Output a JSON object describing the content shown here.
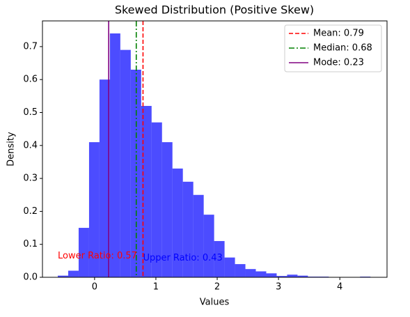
{
  "chart_data": {
    "type": "histogram",
    "title": "Skewed Distribution (Positive Skew)",
    "xlabel": "Values",
    "ylabel": "Density",
    "bins": [
      -0.6,
      -0.43,
      -0.26,
      -0.09,
      0.08,
      0.25,
      0.42,
      0.59,
      0.76,
      0.93,
      1.1,
      1.27,
      1.44,
      1.61,
      1.78,
      1.95,
      2.12,
      2.29,
      2.46,
      2.63,
      2.8,
      2.97,
      3.14,
      3.31,
      3.48,
      3.65,
      3.82,
      3.99,
      4.16,
      4.33,
      4.5
    ],
    "values": [
      0.005,
      0.02,
      0.15,
      0.41,
      0.6,
      0.74,
      0.69,
      0.63,
      0.52,
      0.47,
      0.41,
      0.33,
      0.29,
      0.25,
      0.19,
      0.11,
      0.06,
      0.04,
      0.025,
      0.018,
      0.012,
      0.004,
      0.008,
      0.005,
      0.002,
      0.002,
      0.001,
      0.001,
      0.001,
      0.002
    ],
    "color": "#0000ff",
    "alpha": 0.7,
    "xlim": [
      -0.85,
      4.77
    ],
    "ylim": [
      0,
      0.778
    ],
    "xticks": [
      0,
      1,
      2,
      3,
      4
    ],
    "yticks": [
      {
        "value": 0,
        "label": "0.0"
      },
      0.1,
      0.2,
      0.3,
      0.4,
      0.5,
      0.6,
      0.7
    ],
    "vlines": [
      {
        "name": "Mean: 0.79",
        "value": 0.79,
        "color": "#ff0000",
        "dash": "6,3"
      },
      {
        "name": "Median: 0.68",
        "value": 0.68,
        "color": "#008000",
        "dash": "8,3,2,3"
      },
      {
        "name": "Mode: 0.23",
        "value": 0.23,
        "color": "#800080",
        "dash": "none"
      }
    ],
    "legend": "upper right",
    "annotations": [
      {
        "text": "Lower Ratio: 0.57",
        "x": -0.6,
        "y": 0.065,
        "color": "#ff0000"
      },
      {
        "text": "Upper Ratio: 0.43",
        "x": 0.79,
        "y": 0.058,
        "color": "#0000ff"
      }
    ]
  }
}
